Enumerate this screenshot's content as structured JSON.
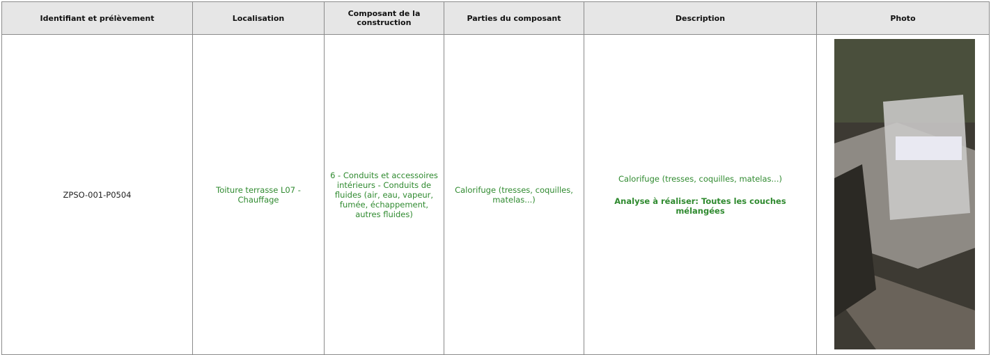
{
  "table": {
    "headers": [
      "Identifiant et prélèvement",
      "Localisation",
      "Composant de la construction",
      "Parties du composant",
      "Description",
      "Photo"
    ],
    "rows": [
      [
        "ZPSO-001-P0504",
        "Toiture terrasse L07 - Chauffage",
        "6 - Conduits et accessoires intérieurs - Conduits de fluides (air, eau, vapeur, fumée, échappement, autres fluides)",
        "Calorifuge (tresses, coquilles, matelas...)",
        [
          "Calorifuge (tresses, coquilles, matelas...)",
          "Analyse à réaliser: Toutes les couches mélangées"
        ]
      ]
    ]
  }
}
